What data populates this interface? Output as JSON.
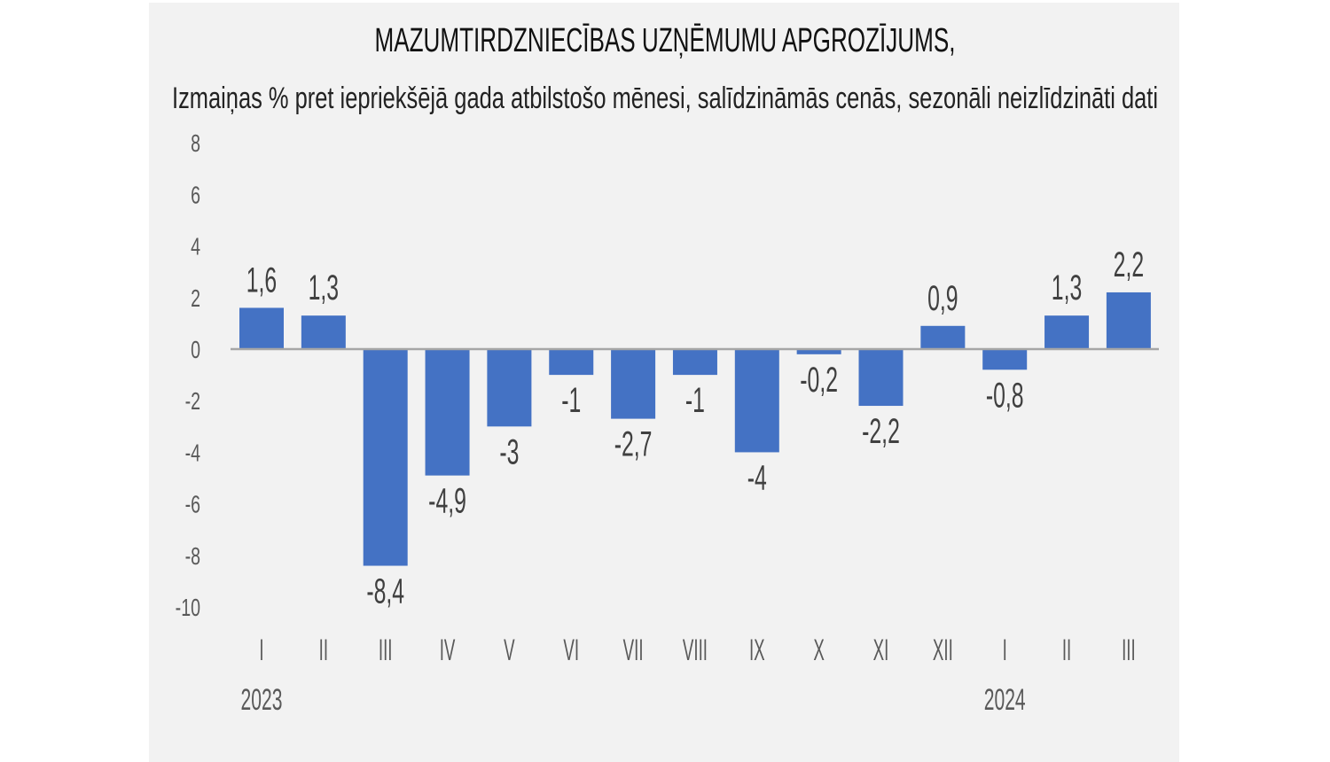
{
  "chart_data": {
    "type": "bar",
    "title": "MAZUMTIRDZNIECĪBAS UZŅĒMUMU APGROZĪJUMS,",
    "subtitle": "Izmaiņas % pret iepriekšējā gada atbilstošo mēnesi, salīdzināmās cenās, sezonāli neizlīdzināti dati",
    "categories": [
      "I",
      "II",
      "III",
      "IV",
      "V",
      "VI",
      "VII",
      "VIII",
      "IX",
      "X",
      "XI",
      "XII",
      "I",
      "II",
      "III"
    ],
    "year_labels": [
      {
        "index": 0,
        "label": "2023"
      },
      {
        "index": 12,
        "label": "2024"
      }
    ],
    "values": [
      1.6,
      1.3,
      -8.4,
      -4.9,
      -3,
      -1,
      -2.7,
      -1,
      -4,
      -0.2,
      -2.2,
      0.9,
      -0.8,
      1.3,
      2.2
    ],
    "data_labels": [
      "1,6",
      "1,3",
      "-8,4",
      "-4,9",
      "-3",
      "-1",
      "-2,7",
      "-1",
      "-4",
      "-0,2",
      "-2,2",
      "0,9",
      "-0,8",
      "1,3",
      "2,2"
    ],
    "yticks": [
      "8",
      "6",
      "4",
      "2",
      "0",
      "-2",
      "-4",
      "-6",
      "-8",
      "-10"
    ],
    "ylim": [
      -10,
      8
    ],
    "grid": false,
    "colors": {
      "bar": "#4472c4",
      "background": "#f2f2f2",
      "axis": "#a6a6a6"
    }
  }
}
